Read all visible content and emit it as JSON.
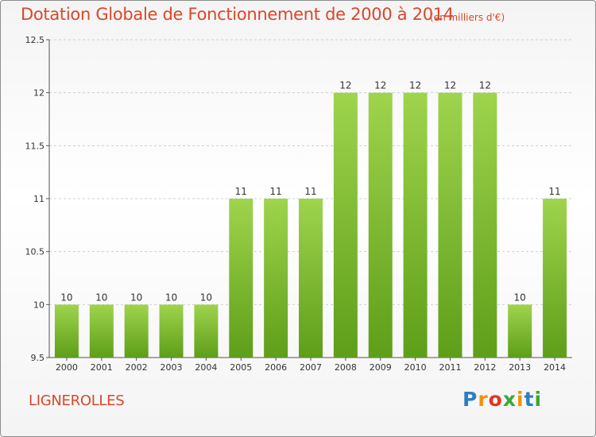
{
  "title": "Dotation Globale de Fonctionnement de 2000 à 2014",
  "unit_note": "(en milliers d'€)",
  "commune": "LIGNEROLLES",
  "logo": {
    "text": "Proxiti",
    "letters": [
      "P",
      "r",
      "o",
      "x",
      "i",
      "t",
      "i"
    ],
    "colors": [
      "#2b7fc6",
      "#f39200",
      "#e2361f",
      "#3aa635",
      "#f39200",
      "#2b7fc6",
      "#3aa635"
    ]
  },
  "colors": {
    "title": "#d9472b",
    "bar_top": "#9fd44d",
    "bar_bottom": "#5e9e19",
    "grid": "#cfcfcf"
  },
  "chart_data": {
    "type": "bar",
    "title": "Dotation Globale de Fonctionnement de 2000 à 2014",
    "subtitle": "(en milliers d'€)",
    "xlabel": "",
    "ylabel": "",
    "categories": [
      "2000",
      "2001",
      "2002",
      "2003",
      "2004",
      "2005",
      "2006",
      "2007",
      "2008",
      "2009",
      "2010",
      "2011",
      "2012",
      "2013",
      "2014"
    ],
    "values": [
      10,
      10,
      10,
      10,
      10,
      11,
      11,
      11,
      12,
      12,
      12,
      12,
      12,
      10,
      11
    ],
    "labels": [
      "10",
      "10",
      "10",
      "10",
      "10",
      "11",
      "11",
      "11",
      "12",
      "12",
      "12",
      "12",
      "12",
      "10",
      "11"
    ],
    "ylim": [
      9.5,
      12.5
    ],
    "yticks": [
      9.5,
      10,
      10.5,
      11,
      11.5,
      12,
      12.5
    ],
    "ytick_labels": [
      "9.5",
      "10",
      "10.5",
      "11",
      "11.5",
      "12",
      "12.5"
    ],
    "grid": true,
    "legend": "none"
  }
}
